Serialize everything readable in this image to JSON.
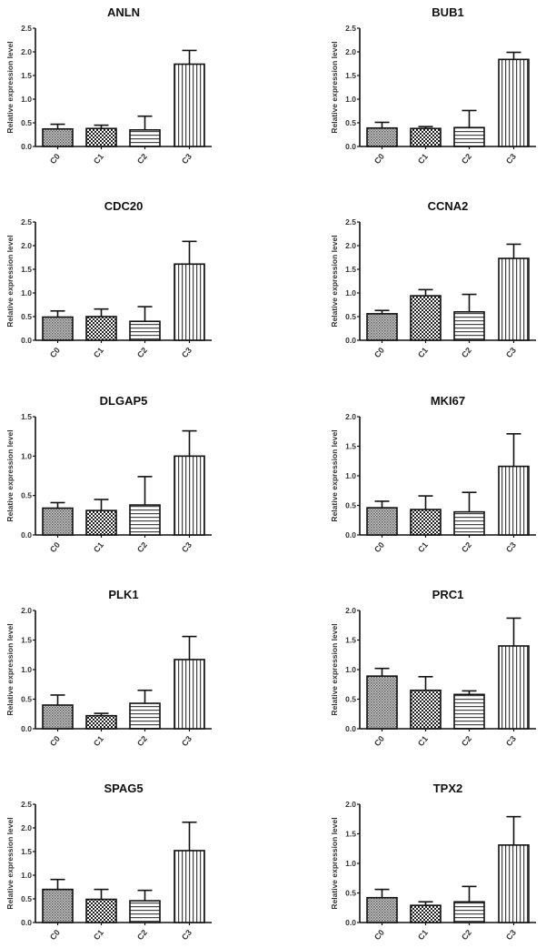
{
  "chart_data": [
    {
      "type": "bar",
      "title": "ANLN",
      "ylabel": "Relative expression level",
      "xlabel": "",
      "categories": [
        "C0",
        "C1",
        "C2",
        "C3"
      ],
      "values": [
        0.37,
        0.38,
        0.35,
        1.74
      ],
      "errors": [
        0.1,
        0.07,
        0.29,
        0.29
      ],
      "ylim": [
        0,
        2.5
      ],
      "yticks": [
        "0.0",
        "0.5",
        "1.0",
        "1.5",
        "2.0",
        "2.5"
      ],
      "grid": false
    },
    {
      "type": "bar",
      "title": "BUB1",
      "ylabel": "Relative expression level",
      "xlabel": "",
      "categories": [
        "C0",
        "C1",
        "C2",
        "C3"
      ],
      "values": [
        0.39,
        0.38,
        0.4,
        1.84
      ],
      "errors": [
        0.12,
        0.04,
        0.36,
        0.15
      ],
      "ylim": [
        0,
        2.5
      ],
      "yticks": [
        "0.0",
        "0.5",
        "1.0",
        "1.5",
        "2.0",
        "2.5"
      ],
      "grid": false
    },
    {
      "type": "bar",
      "title": "CDC20",
      "ylabel": "Relative expression level",
      "xlabel": "",
      "categories": [
        "C0",
        "C1",
        "C2",
        "C3"
      ],
      "values": [
        0.49,
        0.5,
        0.4,
        1.61
      ],
      "errors": [
        0.13,
        0.16,
        0.31,
        0.48
      ],
      "ylim": [
        0,
        2.5
      ],
      "yticks": [
        "0.0",
        "0.5",
        "1.0",
        "1.5",
        "2.0",
        "2.5"
      ],
      "grid": false
    },
    {
      "type": "bar",
      "title": "CCNA2",
      "ylabel": "Relative expression level",
      "xlabel": "",
      "categories": [
        "C0",
        "C1",
        "C2",
        "C3"
      ],
      "values": [
        0.56,
        0.94,
        0.6,
        1.73
      ],
      "errors": [
        0.07,
        0.13,
        0.37,
        0.3
      ],
      "ylim": [
        0,
        2.5
      ],
      "yticks": [
        "0.0",
        "0.5",
        "1.0",
        "1.5",
        "2.0",
        "2.5"
      ],
      "grid": false
    },
    {
      "type": "bar",
      "title": "DLGAP5",
      "ylabel": "Relative expression level",
      "xlabel": "",
      "categories": [
        "C0",
        "C1",
        "C2",
        "C3"
      ],
      "values": [
        0.34,
        0.31,
        0.38,
        1.0
      ],
      "errors": [
        0.07,
        0.14,
        0.36,
        0.32
      ],
      "ylim": [
        0,
        1.5
      ],
      "yticks": [
        "0.0",
        "0.5",
        "1.0",
        "1.5"
      ],
      "grid": false
    },
    {
      "type": "bar",
      "title": "MKI67",
      "ylabel": "Relative expression level",
      "xlabel": "",
      "categories": [
        "C0",
        "C1",
        "C2",
        "C3"
      ],
      "values": [
        0.46,
        0.43,
        0.39,
        1.16
      ],
      "errors": [
        0.11,
        0.23,
        0.33,
        0.55
      ],
      "ylim": [
        0,
        2.0
      ],
      "yticks": [
        "0.0",
        "0.5",
        "1.0",
        "1.5",
        "2.0"
      ],
      "grid": false
    },
    {
      "type": "bar",
      "title": "PLK1",
      "ylabel": "Relative expression level",
      "xlabel": "",
      "categories": [
        "C0",
        "C1",
        "C2",
        "C3"
      ],
      "values": [
        0.4,
        0.22,
        0.43,
        1.17
      ],
      "errors": [
        0.17,
        0.04,
        0.22,
        0.39
      ],
      "ylim": [
        0,
        2.0
      ],
      "yticks": [
        "0.0",
        "0.5",
        "1.0",
        "1.5",
        "2.0"
      ],
      "grid": false
    },
    {
      "type": "bar",
      "title": "PRC1",
      "ylabel": "Relative expression level",
      "xlabel": "",
      "categories": [
        "C0",
        "C1",
        "C2",
        "C3"
      ],
      "values": [
        0.89,
        0.65,
        0.58,
        1.4
      ],
      "errors": [
        0.13,
        0.23,
        0.06,
        0.47
      ],
      "ylim": [
        0,
        2.0
      ],
      "yticks": [
        "0.0",
        "0.5",
        "1.0",
        "1.5",
        "2.0"
      ],
      "grid": false
    },
    {
      "type": "bar",
      "title": "SPAG5",
      "ylabel": "Relative expression level",
      "xlabel": "",
      "categories": [
        "C0",
        "C1",
        "C2",
        "C3"
      ],
      "values": [
        0.7,
        0.49,
        0.46,
        1.52
      ],
      "errors": [
        0.21,
        0.21,
        0.22,
        0.6
      ],
      "ylim": [
        0,
        2.5
      ],
      "yticks": [
        "0.0",
        "0.5",
        "1.0",
        "1.5",
        "2.0",
        "2.5"
      ],
      "grid": false
    },
    {
      "type": "bar",
      "title": "TPX2",
      "ylabel": "Relative expression level",
      "xlabel": "",
      "categories": [
        "C0",
        "C1",
        "C2",
        "C3"
      ],
      "values": [
        0.42,
        0.29,
        0.35,
        1.31
      ],
      "errors": [
        0.14,
        0.06,
        0.26,
        0.48
      ],
      "ylim": [
        0,
        2.0
      ],
      "yticks": [
        "0.0",
        "0.5",
        "1.0",
        "1.5",
        "2.0"
      ],
      "grid": false
    }
  ],
  "patterns": [
    "dense-dots",
    "checker",
    "horizontal-lines",
    "vertical-lines"
  ],
  "colors": {
    "ink": "#111111",
    "background": "#ffffff",
    "pattern_gray": "#888888"
  }
}
